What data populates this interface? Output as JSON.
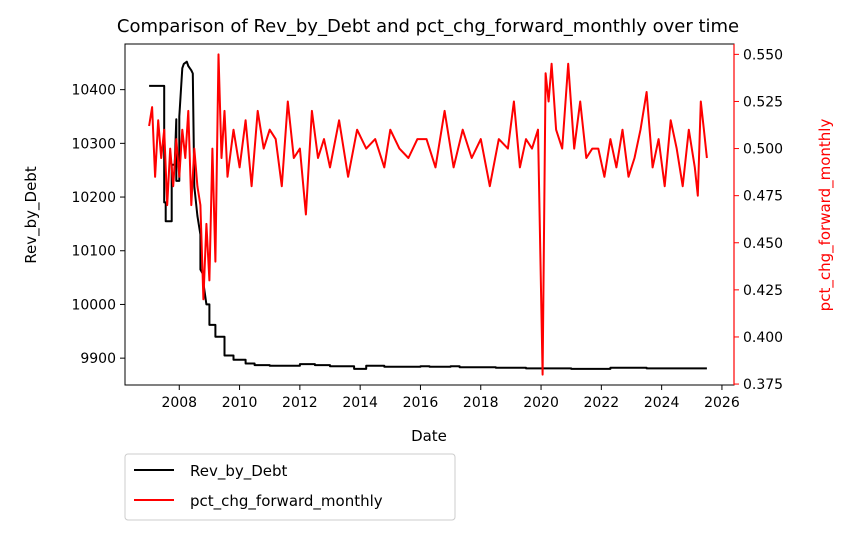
{
  "chart_data": {
    "type": "line",
    "title": "Comparison of Rev_by_Debt and pct_chg_forward_monthly over time",
    "xlabel": "Date",
    "ylabel_left": "Rev_by_Debt",
    "ylabel_right": "pct_chg_forward_monthly",
    "xlim": [
      2006.2,
      2026.4
    ],
    "ylim_left": [
      9850,
      10485
    ],
    "ylim_right": [
      0.3745,
      0.5555
    ],
    "x_ticks": [
      2008,
      2010,
      2012,
      2014,
      2016,
      2018,
      2020,
      2022,
      2024,
      2026
    ],
    "y_ticks_left": [
      9900,
      10000,
      10100,
      10200,
      10300,
      10400
    ],
    "y_ticks_right": [
      0.375,
      0.4,
      0.425,
      0.45,
      0.475,
      0.5,
      0.525,
      0.55
    ],
    "y_tick_labels_right": [
      "0.375",
      "0.400",
      "0.425",
      "0.450",
      "0.475",
      "0.500",
      "0.525",
      "0.550"
    ],
    "grid": false,
    "legend_position": "below-left",
    "colors": {
      "Rev_by_Debt": "#000000",
      "pct_chg_forward_monthly": "#ff0000",
      "right_axis": "#ff0000"
    },
    "series": [
      {
        "name": "Rev_by_Debt",
        "axis": "left",
        "color": "#000000",
        "x": [
          2007.0,
          2007.5,
          2007.5,
          2007.55,
          2007.55,
          2007.75,
          2007.75,
          2007.85,
          2007.9,
          2007.9,
          2008.0,
          2008.0,
          2008.1,
          2008.15,
          2008.2,
          2008.25,
          2008.3,
          2008.35,
          2008.4,
          2008.45,
          2008.5,
          2008.6,
          2008.7,
          2008.7,
          2008.8,
          2008.8,
          2008.9,
          2009.0,
          2009.0,
          2009.2,
          2009.2,
          2009.5,
          2009.5,
          2009.8,
          2009.8,
          2010.2,
          2010.2,
          2010.5,
          2010.5,
          2011.0,
          2011.0,
          2012.0,
          2012.0,
          2012.5,
          2012.5,
          2013.0,
          2013.0,
          2013.8,
          2013.8,
          2014.2,
          2014.2,
          2014.8,
          2014.8,
          2016.0,
          2016.0,
          2016.3,
          2016.3,
          2017.0,
          2017.0,
          2017.3,
          2017.3,
          2018.5,
          2018.5,
          2019.5,
          2019.5,
          2021.0,
          2021.0,
          2022.3,
          2022.3,
          2023.5,
          2023.5,
          2025.5
        ],
        "values": [
          10407,
          10407,
          10190,
          10190,
          10155,
          10155,
          10260,
          10260,
          10345,
          10230,
          10230,
          10350,
          10440,
          10448,
          10450,
          10452,
          10444,
          10440,
          10436,
          10430,
          10220,
          10165,
          10130,
          10065,
          10055,
          10040,
          10000,
          10000,
          9962,
          9962,
          9940,
          9940,
          9905,
          9905,
          9897,
          9897,
          9890,
          9890,
          9887,
          9887,
          9886,
          9886,
          9889,
          9889,
          9887,
          9887,
          9885,
          9885,
          9880,
          9880,
          9886,
          9886,
          9884,
          9884,
          9885,
          9885,
          9884,
          9884,
          9885,
          9885,
          9883,
          9883,
          9882,
          9882,
          9881,
          9881,
          9880,
          9880,
          9882,
          9882,
          9881,
          9881
        ]
      },
      {
        "name": "pct_chg_forward_monthly",
        "axis": "right",
        "color": "#ff0000",
        "x": [
          2007.0,
          2007.1,
          2007.2,
          2007.3,
          2007.4,
          2007.5,
          2007.6,
          2007.7,
          2007.8,
          2007.9,
          2008.0,
          2008.1,
          2008.2,
          2008.3,
          2008.4,
          2008.5,
          2008.6,
          2008.7,
          2008.8,
          2008.9,
          2009.0,
          2009.1,
          2009.2,
          2009.3,
          2009.4,
          2009.5,
          2009.6,
          2009.8,
          2010.0,
          2010.2,
          2010.4,
          2010.6,
          2010.8,
          2011.0,
          2011.2,
          2011.4,
          2011.6,
          2011.8,
          2012.0,
          2012.2,
          2012.4,
          2012.6,
          2012.8,
          2013.0,
          2013.3,
          2013.6,
          2013.9,
          2014.2,
          2014.5,
          2014.8,
          2015.0,
          2015.3,
          2015.6,
          2015.9,
          2016.2,
          2016.5,
          2016.8,
          2017.1,
          2017.4,
          2017.7,
          2018.0,
          2018.3,
          2018.6,
          2018.9,
          2019.1,
          2019.3,
          2019.5,
          2019.7,
          2019.9,
          2020.05,
          2020.15,
          2020.25,
          2020.35,
          2020.5,
          2020.7,
          2020.9,
          2021.1,
          2021.3,
          2021.5,
          2021.7,
          2021.9,
          2022.1,
          2022.3,
          2022.5,
          2022.7,
          2022.9,
          2023.1,
          2023.3,
          2023.5,
          2023.7,
          2023.9,
          2024.1,
          2024.3,
          2024.5,
          2024.7,
          2024.9,
          2025.1,
          2025.2,
          2025.3,
          2025.4,
          2025.5
        ],
        "values": [
          0.512,
          0.522,
          0.485,
          0.515,
          0.495,
          0.51,
          0.47,
          0.5,
          0.48,
          0.505,
          0.485,
          0.51,
          0.495,
          0.52,
          0.47,
          0.5,
          0.48,
          0.47,
          0.42,
          0.46,
          0.43,
          0.5,
          0.44,
          0.55,
          0.495,
          0.52,
          0.485,
          0.51,
          0.49,
          0.515,
          0.48,
          0.52,
          0.5,
          0.51,
          0.505,
          0.48,
          0.525,
          0.495,
          0.5,
          0.465,
          0.52,
          0.495,
          0.505,
          0.49,
          0.515,
          0.485,
          0.51,
          0.5,
          0.505,
          0.49,
          0.51,
          0.5,
          0.495,
          0.505,
          0.505,
          0.49,
          0.52,
          0.49,
          0.51,
          0.495,
          0.505,
          0.48,
          0.505,
          0.5,
          0.525,
          0.49,
          0.505,
          0.5,
          0.51,
          0.38,
          0.54,
          0.525,
          0.545,
          0.51,
          0.5,
          0.545,
          0.5,
          0.525,
          0.495,
          0.5,
          0.5,
          0.485,
          0.505,
          0.49,
          0.51,
          0.485,
          0.495,
          0.51,
          0.53,
          0.49,
          0.505,
          0.48,
          0.515,
          0.5,
          0.48,
          0.51,
          0.49,
          0.475,
          0.525,
          0.51,
          0.495
        ]
      }
    ]
  }
}
